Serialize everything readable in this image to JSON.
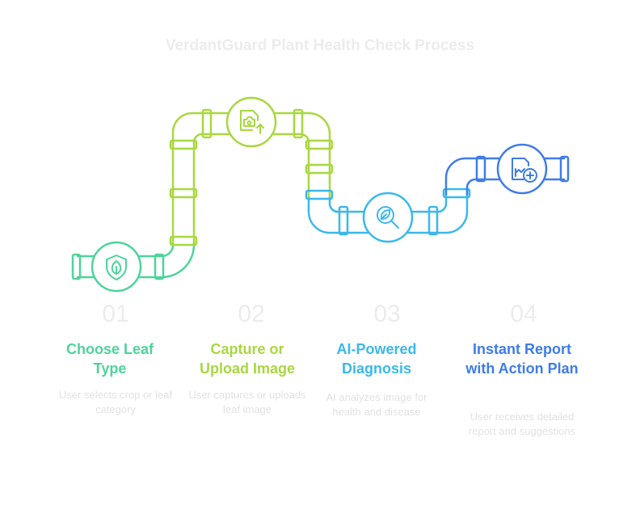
{
  "title": "VerdantGuard Plant Health Check Process",
  "colors": {
    "step1": "#4ed39a",
    "step2": "#a8d83f",
    "step3": "#3bb8ec",
    "step4": "#3f7ce8"
  },
  "steps": [
    {
      "number": "01",
      "title": "Choose Leaf Type",
      "description": "User selects crop or leaf category",
      "icon": "leaf-shield-icon"
    },
    {
      "number": "02",
      "title": "Capture or Upload Image",
      "description": "User captures or uploads leaf image",
      "icon": "camera-upload-icon"
    },
    {
      "number": "03",
      "title": "AI-Powered Diagnosis",
      "description": "AI analyzes image for health and disease",
      "icon": "leaf-magnifier-icon"
    },
    {
      "number": "04",
      "title": "Instant Report with Action Plan",
      "description": "User receives detailed report and suggestions",
      "icon": "report-add-icon"
    }
  ]
}
